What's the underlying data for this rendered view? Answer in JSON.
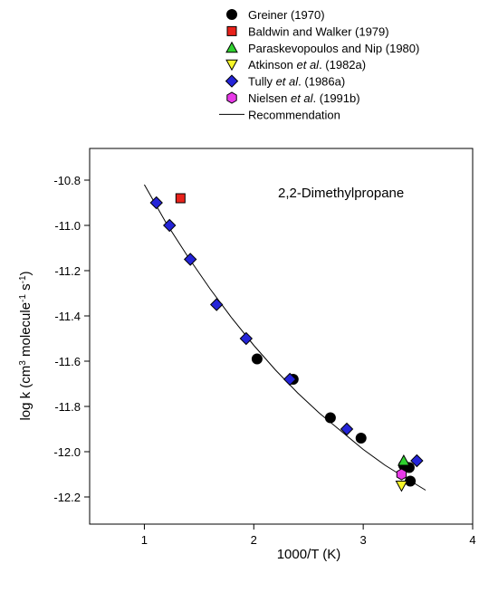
{
  "chart_data": {
    "type": "scatter",
    "annotation": "2,2-Dimethylpropane",
    "xlabel": "1000/T (K)",
    "ylabel": {
      "prefix": "log k (cm",
      "sup1": "3",
      "mid": " molecule",
      "sup2": "-1",
      "mid2": " s",
      "sup3": "-1",
      "suffix": ")"
    },
    "xlim": [
      0.5,
      4.0
    ],
    "ylim": [
      -12.32,
      -10.66
    ],
    "xticks": [
      1,
      2,
      3,
      4
    ],
    "xtick_labels": [
      "1",
      "2",
      "3",
      "4"
    ],
    "yticks": [
      -12.2,
      -12.0,
      -11.8,
      -11.6,
      -11.4,
      -11.2,
      -11.0,
      -10.8
    ],
    "ytick_labels": [
      "-12.2",
      "-12.0",
      "-11.8",
      "-11.6",
      "-11.4",
      "-11.2",
      "-11.0",
      "-10.8"
    ],
    "grid": false,
    "legend_position": "top",
    "series": [
      {
        "name": [
          {
            "t": "Greiner (1970)"
          }
        ],
        "marker": "circle",
        "color": "#000000",
        "x": [
          2.03,
          2.36,
          2.7,
          2.98,
          3.37,
          3.42,
          3.43
        ],
        "y": [
          -11.59,
          -11.68,
          -11.85,
          -11.94,
          -12.06,
          -12.07,
          -12.13
        ]
      },
      {
        "name": [
          {
            "t": "Baldwin and Walker (1979)"
          }
        ],
        "marker": "square",
        "color": "#e8221b",
        "x": [
          1.33
        ],
        "y": [
          -10.88
        ]
      },
      {
        "name": [
          {
            "t": "Paraskevopoulos and Nip (1980)"
          }
        ],
        "marker": "triangle-up",
        "color": "#2fd12f",
        "x": [
          3.37
        ],
        "y": [
          -12.04
        ]
      },
      {
        "name": [
          {
            "t": "Atkinson "
          },
          {
            "t": "et al",
            "i": true
          },
          {
            "t": ". (1982a)"
          }
        ],
        "marker": "triangle-down",
        "color": "#f7f72a",
        "x": [
          3.35
        ],
        "y": [
          -12.15
        ]
      },
      {
        "name": [
          {
            "t": "Tully "
          },
          {
            "t": "et al",
            "i": true
          },
          {
            "t": ". (1986a)"
          }
        ],
        "marker": "diamond",
        "color": "#2424d8",
        "x": [
          1.11,
          1.23,
          1.42,
          1.66,
          1.93,
          2.33,
          2.85,
          3.49
        ],
        "y": [
          -10.9,
          -11.0,
          -11.15,
          -11.35,
          -11.5,
          -11.68,
          -11.9,
          -12.04
        ]
      },
      {
        "name": [
          {
            "t": "Nielsen "
          },
          {
            "t": "et al",
            "i": true
          },
          {
            "t": ". (1991b)"
          }
        ],
        "marker": "hexagon",
        "color": "#e83ae8",
        "x": [
          3.35
        ],
        "y": [
          -12.1
        ]
      }
    ],
    "recommendation": {
      "name": [
        {
          "t": "Recommendation"
        }
      ],
      "x": [
        1.0,
        1.2,
        1.4,
        1.6,
        1.8,
        2.0,
        2.2,
        2.4,
        2.6,
        2.8,
        3.0,
        3.2,
        3.4,
        3.57
      ],
      "y": [
        -10.82,
        -10.99,
        -11.14,
        -11.28,
        -11.41,
        -11.53,
        -11.64,
        -11.74,
        -11.83,
        -11.91,
        -11.99,
        -12.06,
        -12.12,
        -12.17
      ]
    }
  }
}
